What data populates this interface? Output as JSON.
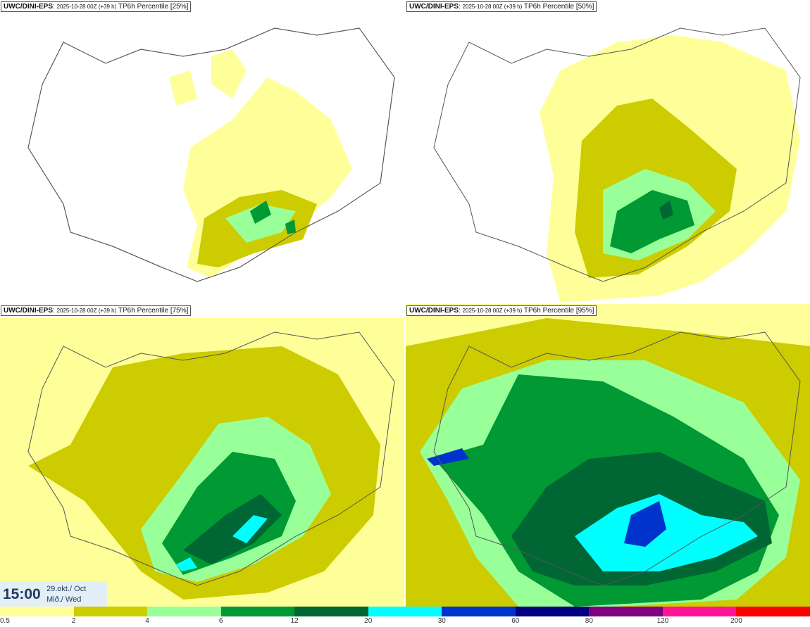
{
  "panels": [
    {
      "source": "UWC/DINI-EPS",
      "run": "2025-10-28 00Z (+39 h)",
      "label": "TP6h Percentile [25%]"
    },
    {
      "source": "UWC/DINI-EPS",
      "run": "2025-10-28 00Z (+39 h)",
      "label": "TP6h Percentile [50%]"
    },
    {
      "source": "UWC/DINI-EPS",
      "run": "2025-10-28 00Z (+39 h)",
      "label": "TP6h Percentile [75%]"
    },
    {
      "source": "UWC/DINI-EPS",
      "run": "2025-10-28 00Z (+39 h)",
      "label": "TP6h Percentile [95%]"
    }
  ],
  "valid_time": {
    "time": "15:00",
    "date_line1": "29.okt./ Oct",
    "date_line2": "Mið./ Wed"
  },
  "legend": {
    "colors": [
      "#ffff99",
      "#cccc00",
      "#99ff99",
      "#009933",
      "#006633",
      "#00ffff",
      "#0033cc",
      "#000080",
      "#800080",
      "#ff1493",
      "#ff0000"
    ],
    "tick_labels": [
      "0.5",
      "2",
      "4",
      "6",
      "12",
      "20",
      "30",
      "60",
      "80",
      "120",
      "200"
    ]
  },
  "map_colors": {
    "land_outline": "#555555",
    "background": "#ffffff"
  }
}
